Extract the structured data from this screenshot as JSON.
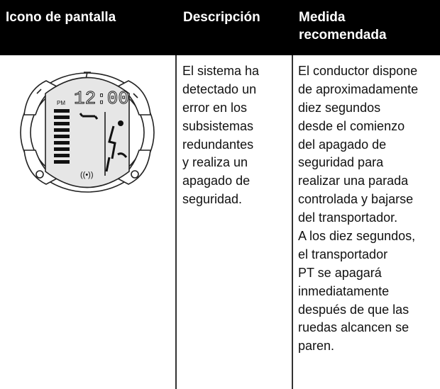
{
  "table": {
    "headers": [
      "Icono de pantalla",
      "Descripción",
      "Medida recomendada"
    ],
    "rows": [
      [
        [
          "El sistema ha",
          "detectado un",
          "error en los",
          "subsistemas",
          "redundantes",
          "y realiza un",
          "apagado de",
          "seguridad."
        ],
        [
          "El conductor dispone",
          "de aproximadamente",
          "diez segundos",
          "desde el comienzo",
          "del apagado de",
          "seguridad para",
          "realizar una parada",
          "controlada y bajarse",
          "del transportador.",
          "A los diez segundos,",
          "el transportador",
          "PT se apagará",
          "inmediatamente",
          "después de que las",
          "ruedas alcancen se",
          "paren."
        ]
      ]
    ]
  },
  "icon": {
    "time": "12:00",
    "pm": "PM",
    "signal": "((•))"
  }
}
